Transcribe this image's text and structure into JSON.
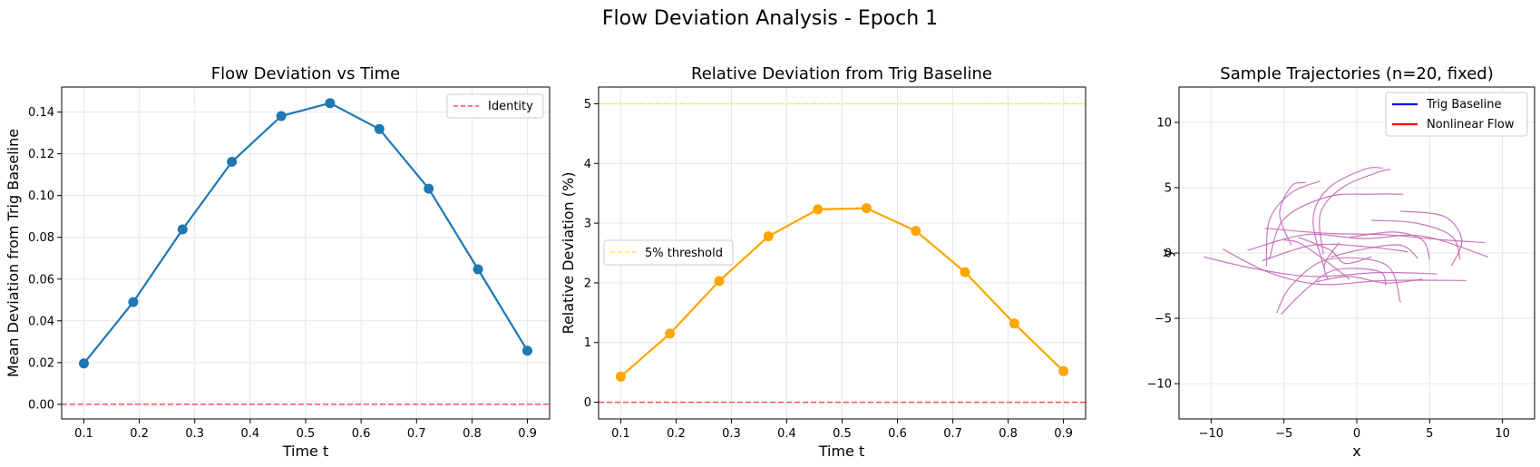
{
  "figure": {
    "title": "Flow Deviation Analysis - Epoch 1"
  },
  "chart_data": [
    {
      "type": "line",
      "title": "Flow Deviation vs Time",
      "xlabel": "Time t",
      "ylabel": "Mean Deviation from Trig Baseline",
      "xlim": [
        0.06,
        0.94
      ],
      "ylim": [
        -0.007,
        0.152
      ],
      "xticks": [
        "0.1",
        "0.2",
        "0.3",
        "0.4",
        "0.5",
        "0.6",
        "0.7",
        "0.8",
        "0.9"
      ],
      "yticks": [
        "0.00",
        "0.02",
        "0.04",
        "0.06",
        "0.08",
        "0.10",
        "0.12",
        "0.14"
      ],
      "grid": true,
      "legend_position": "upper right",
      "series": [
        {
          "color": "#1f77b4",
          "style": "solid-markers",
          "x": [
            0.1,
            0.189,
            0.278,
            0.367,
            0.456,
            0.544,
            0.633,
            0.722,
            0.811,
            0.9
          ],
          "y": [
            0.0196,
            0.049,
            0.0838,
            0.1162,
            0.1381,
            0.1443,
            0.1319,
            0.1033,
            0.0647,
            0.0257
          ]
        }
      ],
      "hlines": [
        {
          "name": "Identity",
          "y": 0.0,
          "color": "#ff0000",
          "style": "dashed"
        }
      ]
    },
    {
      "type": "line",
      "title": "Relative Deviation from Trig Baseline",
      "xlabel": "Time t",
      "ylabel": "Relative Deviation (%)",
      "xlim": [
        0.06,
        0.94
      ],
      "ylim": [
        -0.28,
        5.28
      ],
      "xticks": [
        "0.1",
        "0.2",
        "0.3",
        "0.4",
        "0.5",
        "0.6",
        "0.7",
        "0.8",
        "0.9"
      ],
      "yticks": [
        "0",
        "1",
        "2",
        "3",
        "4",
        "5"
      ],
      "grid": true,
      "legend_position": "center left",
      "series": [
        {
          "color": "#ffa500",
          "style": "solid-markers",
          "x": [
            0.1,
            0.189,
            0.278,
            0.367,
            0.456,
            0.544,
            0.633,
            0.722,
            0.811,
            0.9
          ],
          "y": [
            0.43,
            1.15,
            2.03,
            2.78,
            3.23,
            3.25,
            2.87,
            2.18,
            1.32,
            0.52
          ]
        }
      ],
      "hlines": [
        {
          "name": "5% threshold",
          "y": 5.0,
          "color": "#ffe55c",
          "style": "dashed"
        },
        {
          "y": 0.0,
          "color": "#ff0000",
          "style": "dashed"
        }
      ]
    },
    {
      "type": "line",
      "title": "Sample Trajectories (n=20, fixed)",
      "xlabel": "x",
      "ylabel": "y",
      "xlim": [
        -12.2,
        12.2
      ],
      "ylim": [
        -12.7,
        12.7
      ],
      "xticks": [
        "−10",
        "−5",
        "0",
        "5",
        "10"
      ],
      "yticks": [
        "−10",
        "−5",
        "0",
        "5",
        "10"
      ],
      "grid": true,
      "legend_position": "upper right",
      "legend": [
        {
          "name": "Trig Baseline",
          "color": "#0000ff"
        },
        {
          "name": "Nonlinear Flow",
          "color": "#ff0000"
        }
      ],
      "trajectory_color": "#c060b0",
      "trajectories": [
        [
          [
            -10.5,
            -0.3
          ],
          [
            -7,
            -1.2
          ],
          [
            -3,
            -1.8
          ],
          [
            1.5,
            -1.5
          ],
          [
            5.5,
            -1.6
          ]
        ],
        [
          [
            -9.2,
            0.3
          ],
          [
            -6,
            -1.5
          ],
          [
            -2.5,
            -2.4
          ],
          [
            2,
            -2.1
          ],
          [
            7.5,
            -2.1
          ]
        ],
        [
          [
            -7.5,
            0.2
          ],
          [
            -3.5,
            1.4
          ],
          [
            0.5,
            1.1
          ],
          [
            4.5,
            1.3
          ],
          [
            9,
            -0.3
          ]
        ],
        [
          [
            -6.3,
            1.9
          ],
          [
            -2,
            1.5
          ],
          [
            2,
            1.4
          ],
          [
            6,
            1.0
          ],
          [
            8.8,
            0.8
          ]
        ],
        [
          [
            -6.5,
            -0.6
          ],
          [
            -3,
            0.6
          ],
          [
            0.5,
            0.5
          ],
          [
            3.5,
            0.1
          ]
        ],
        [
          [
            -5.5,
            -4.6
          ],
          [
            -4.5,
            -2.5
          ],
          [
            -2,
            -0.5
          ],
          [
            2,
            -0.9
          ],
          [
            3,
            -3.8
          ]
        ],
        [
          [
            -5.2,
            -4.7
          ],
          [
            -3.5,
            -2.8
          ],
          [
            -1.5,
            -1.3
          ],
          [
            1.5,
            -1.4
          ],
          [
            2,
            -2.5
          ]
        ],
        [
          [
            -6.2,
            -1.0
          ],
          [
            -6,
            2.5
          ],
          [
            -4.5,
            4.6
          ],
          [
            -2.5,
            5.5
          ]
        ],
        [
          [
            -4.5,
            0.6
          ],
          [
            -5.3,
            3.0
          ],
          [
            -4.5,
            5.1
          ],
          [
            -3.5,
            5.4
          ]
        ],
        [
          [
            -2.2,
            -1.3
          ],
          [
            -3,
            2.5
          ],
          [
            -2,
            4.9
          ],
          [
            0.5,
            6.4
          ],
          [
            1.8,
            6.5
          ]
        ],
        [
          [
            -2.3,
            -0.1
          ],
          [
            -2.5,
            3.0
          ],
          [
            -1,
            5.0
          ],
          [
            1.5,
            6.2
          ],
          [
            2.3,
            6.4
          ]
        ],
        [
          [
            -6,
            -0.5
          ],
          [
            -5,
            2.6
          ],
          [
            -2,
            4.3
          ],
          [
            1,
            4.5
          ],
          [
            3.2,
            4.5
          ]
        ],
        [
          [
            1,
            2.5
          ],
          [
            4,
            2.3
          ],
          [
            6.5,
            1.3
          ],
          [
            7.1,
            -0.5
          ]
        ],
        [
          [
            3,
            3.2
          ],
          [
            6,
            2.8
          ],
          [
            7.2,
            1.0
          ],
          [
            6.5,
            -1.0
          ]
        ],
        [
          [
            -0.5,
            1.2
          ],
          [
            2.5,
            1.6
          ],
          [
            4.5,
            1.0
          ],
          [
            5,
            -0.5
          ]
        ],
        [
          [
            -1.2,
            0.8
          ],
          [
            -2.2,
            -0.8
          ],
          [
            -2,
            -2.0
          ]
        ],
        [
          [
            -1.8,
            -0.3
          ],
          [
            0.5,
            0.3
          ],
          [
            3,
            0.6
          ],
          [
            4.2,
            -0.4
          ]
        ],
        [
          [
            -0.5,
            -2.0
          ],
          [
            -2.5,
            -0.3
          ],
          [
            -4,
            0.8
          ],
          [
            -5,
            1.0
          ]
        ],
        [
          [
            -4,
            1.2
          ],
          [
            -1.8,
            0.2
          ],
          [
            -0.8,
            -0.8
          ],
          [
            1,
            -0.3
          ]
        ],
        [
          [
            -2.8,
            -2.2
          ],
          [
            -0.5,
            -1.8
          ],
          [
            2,
            -2.3
          ],
          [
            4.5,
            -2.0
          ]
        ]
      ]
    }
  ]
}
